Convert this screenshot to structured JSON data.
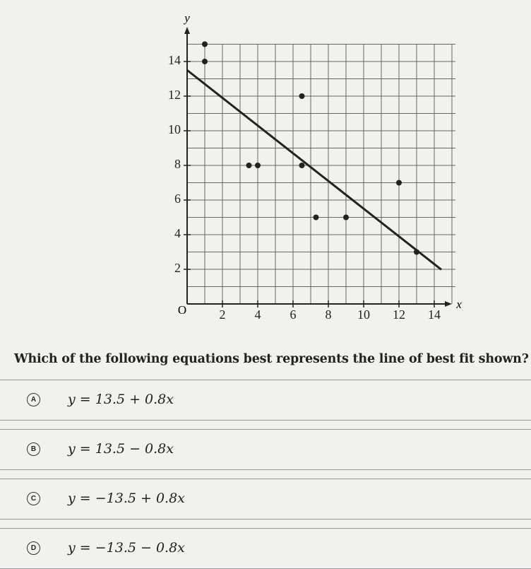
{
  "chart_data": {
    "type": "scatter",
    "x_label": "x",
    "y_label": "y",
    "origin_label": "O",
    "xlim": [
      0,
      15
    ],
    "ylim": [
      0,
      15
    ],
    "xticks": [
      2,
      4,
      6,
      8,
      10,
      12,
      14
    ],
    "yticks": [
      2,
      4,
      6,
      8,
      10,
      12,
      14
    ],
    "color": "#222222",
    "x": [
      1,
      1,
      6.5,
      3.5,
      4,
      6.5,
      12,
      7.3,
      9,
      13
    ],
    "y": [
      15,
      14,
      12,
      8,
      8,
      8,
      7,
      5,
      5,
      3
    ],
    "fit_line": {
      "intercept": 13.5,
      "slope": -0.8,
      "x_range": [
        0,
        14.4
      ]
    }
  },
  "question": "Which of the following equations best represents the line of best fit shown?",
  "options": [
    {
      "letter": "A",
      "text": "y = 13.5 + 0.8x"
    },
    {
      "letter": "B",
      "text": "y = 13.5 − 0.8x"
    },
    {
      "letter": "C",
      "text": "y = −13.5 + 0.8x"
    },
    {
      "letter": "D",
      "text": "y = −13.5 − 0.8x"
    }
  ]
}
